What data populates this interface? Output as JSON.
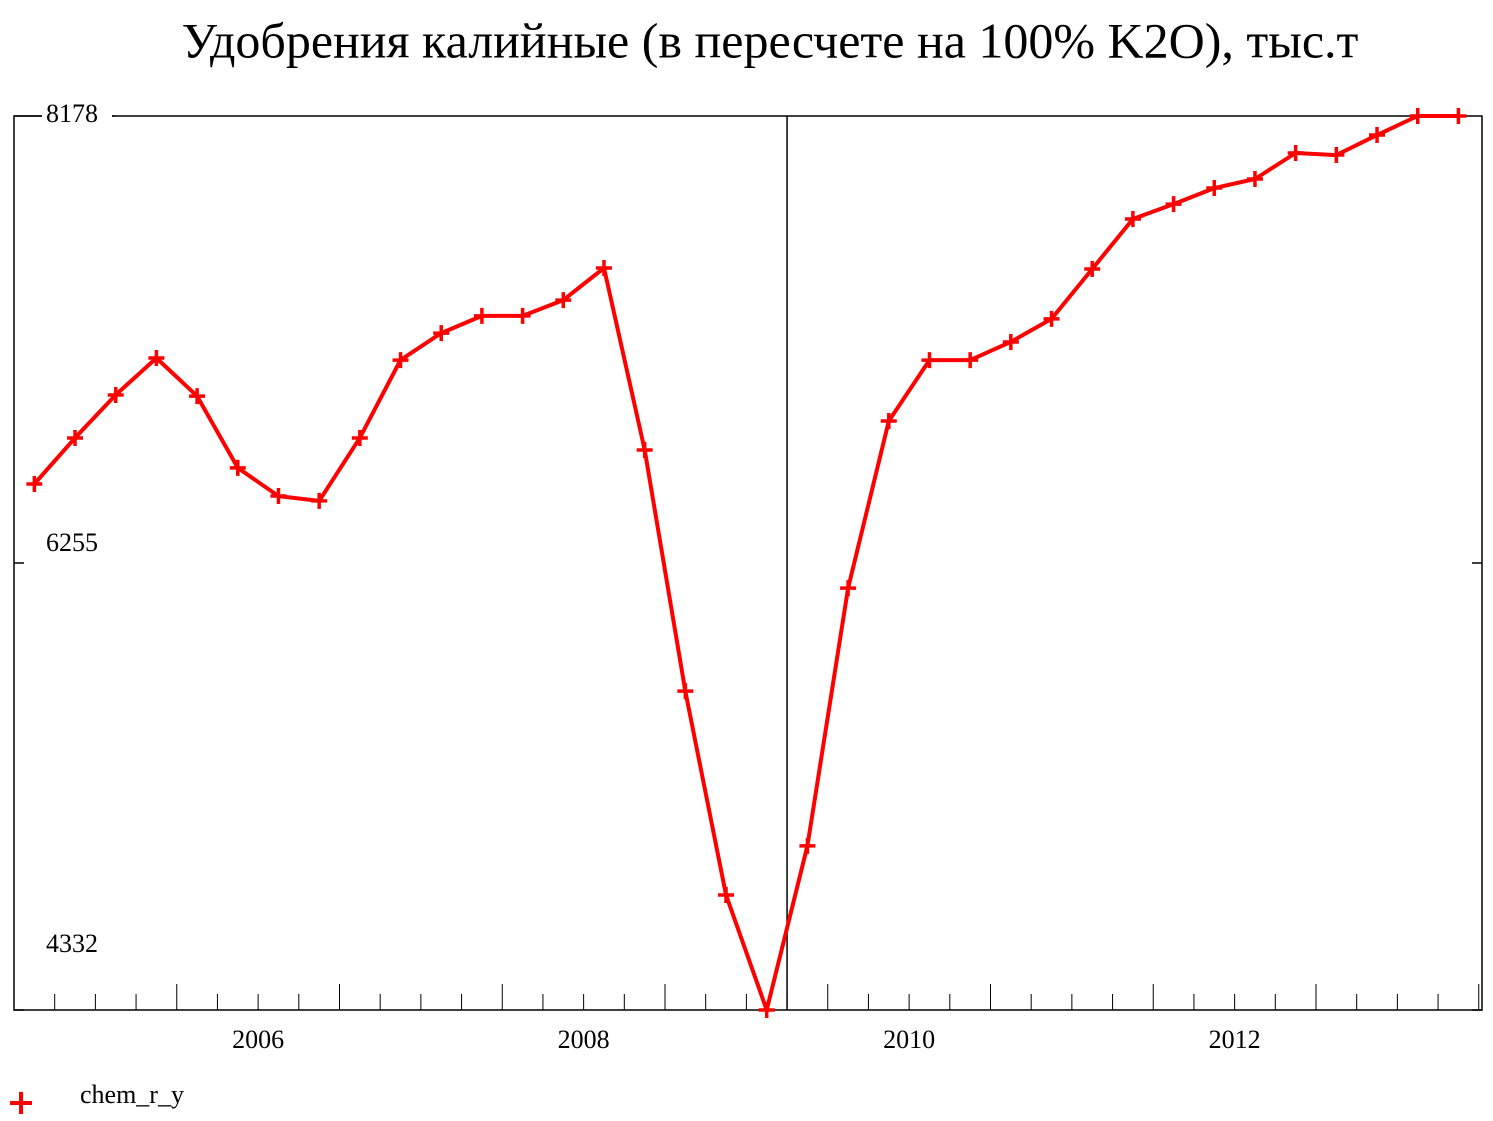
{
  "chart_data": {
    "type": "line",
    "title": "Удобрения калийные (в пересчете на 100% K2O), тыс.т",
    "x": [
      2004.625,
      2004.875,
      2005.125,
      2005.375,
      2005.625,
      2005.875,
      2006.125,
      2006.375,
      2006.625,
      2006.875,
      2007.125,
      2007.375,
      2007.625,
      2007.875,
      2008.125,
      2008.375,
      2008.625,
      2008.875,
      2009.125,
      2009.375,
      2009.625,
      2009.875,
      2010.125,
      2010.375,
      2010.625,
      2010.875,
      2011.125,
      2011.375,
      2011.625,
      2011.875,
      2012.125,
      2012.375,
      2012.625,
      2012.875,
      2013.125,
      2013.375
    ],
    "series": [
      {
        "name": "chem_r_y",
        "color": "#ff0000",
        "values": [
          6595,
          6793,
          6978,
          7137,
          6973,
          6664,
          6543,
          6522,
          6793,
          7128,
          7244,
          7318,
          7318,
          7386,
          7524,
          6741,
          5704,
          4827,
          4332,
          5038,
          6147,
          6866,
          7128,
          7128,
          7206,
          7305,
          7520,
          7735,
          7799,
          7868,
          7907,
          8019,
          8010,
          8096,
          8178,
          8178
        ]
      }
    ],
    "xlim": [
      2004.5,
      2013.52
    ],
    "xticks": [
      2006,
      2008,
      2010,
      2012
    ],
    "ylim": [
      4332,
      8178
    ],
    "yticks": [
      4332,
      6255,
      8178
    ],
    "reference_line_x": 2009.25
  }
}
